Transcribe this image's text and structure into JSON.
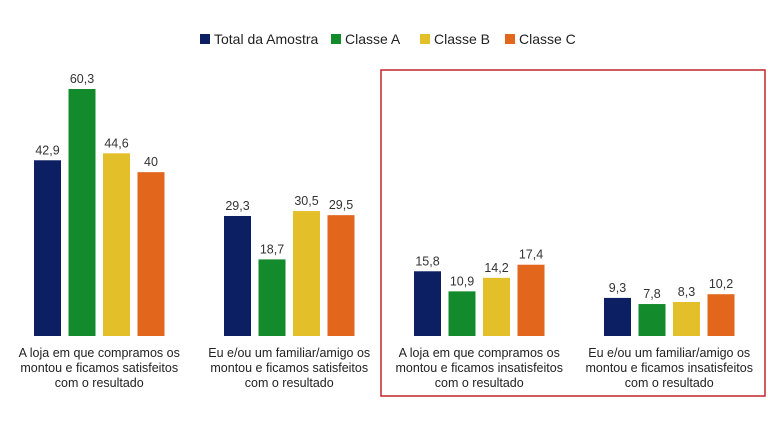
{
  "chart_data": {
    "type": "bar",
    "title": "",
    "xlabel": "",
    "ylabel": "",
    "ylim": [
      0,
      65
    ],
    "grid": false,
    "legend_position": "top-center",
    "categories": [
      [
        "A  loja em que compramos os",
        "montou e ficamos satisfeitos",
        "com o resultado"
      ],
      [
        "Eu e/ou um familiar/amigo os",
        "montou e ficamos satisfeitos",
        "com o resultado"
      ],
      [
        "A  loja em que compramos os",
        "montou e ficamos insatisfeitos",
        "com o resultado"
      ],
      [
        "Eu e/ou um familiar/amigo os",
        "montou e ficamos insatisfeitos",
        "com o resultado"
      ]
    ],
    "series": [
      {
        "name": "Total da Amostra",
        "color": "#0d1f63",
        "values": [
          42.9,
          29.3,
          15.8,
          9.3
        ],
        "labels": [
          "42,9",
          "29,3",
          "15,8",
          "9,3"
        ]
      },
      {
        "name": "Classe A",
        "color": "#138a2b",
        "values": [
          60.3,
          18.7,
          10.9,
          7.8
        ],
        "labels": [
          "60,3",
          "18,7",
          "10,9",
          "7,8"
        ]
      },
      {
        "name": "Classe B",
        "color": "#e3bf2a",
        "values": [
          44.6,
          30.5,
          14.2,
          8.3
        ],
        "labels": [
          "44,6",
          "30,5",
          "14,2",
          "8,3"
        ]
      },
      {
        "name": "Classe C",
        "color": "#e2661b",
        "values": [
          40,
          29.5,
          17.4,
          10.2
        ],
        "labels": [
          "40",
          "29,5",
          "17,4",
          "10,2"
        ]
      }
    ],
    "highlight": {
      "categories": [
        2,
        3
      ],
      "color": "#c0262b"
    }
  }
}
